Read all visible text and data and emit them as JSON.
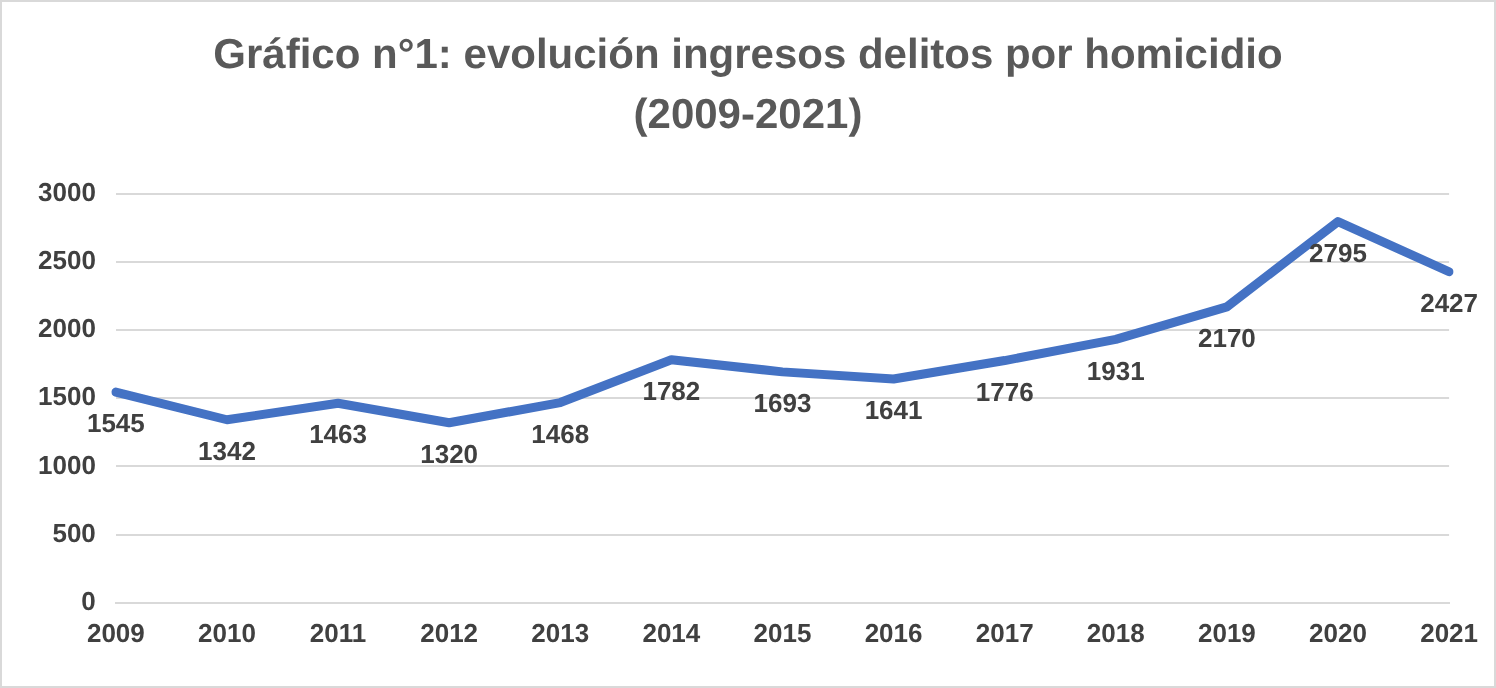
{
  "chart_data": {
    "type": "line",
    "title": "Gráfico n°1: evolución ingresos delitos por homicidio (2009-2021)",
    "categories": [
      "2009",
      "2010",
      "2011",
      "2012",
      "2013",
      "2014",
      "2015",
      "2016",
      "2017",
      "2018",
      "2019",
      "2020",
      "2021"
    ],
    "series": [
      {
        "color": "#4472c4",
        "values": [
          1545,
          1342,
          1463,
          1320,
          1468,
          1782,
          1693,
          1641,
          1776,
          1931,
          2170,
          2795,
          2427
        ]
      }
    ],
    "ylim": [
      0,
      3000
    ],
    "yticks": [
      0,
      500,
      1000,
      1500,
      2000,
      2500,
      3000
    ],
    "grid": "y",
    "data_labels": true,
    "marker": "none",
    "line_style": "solid",
    "legend": false
  }
}
